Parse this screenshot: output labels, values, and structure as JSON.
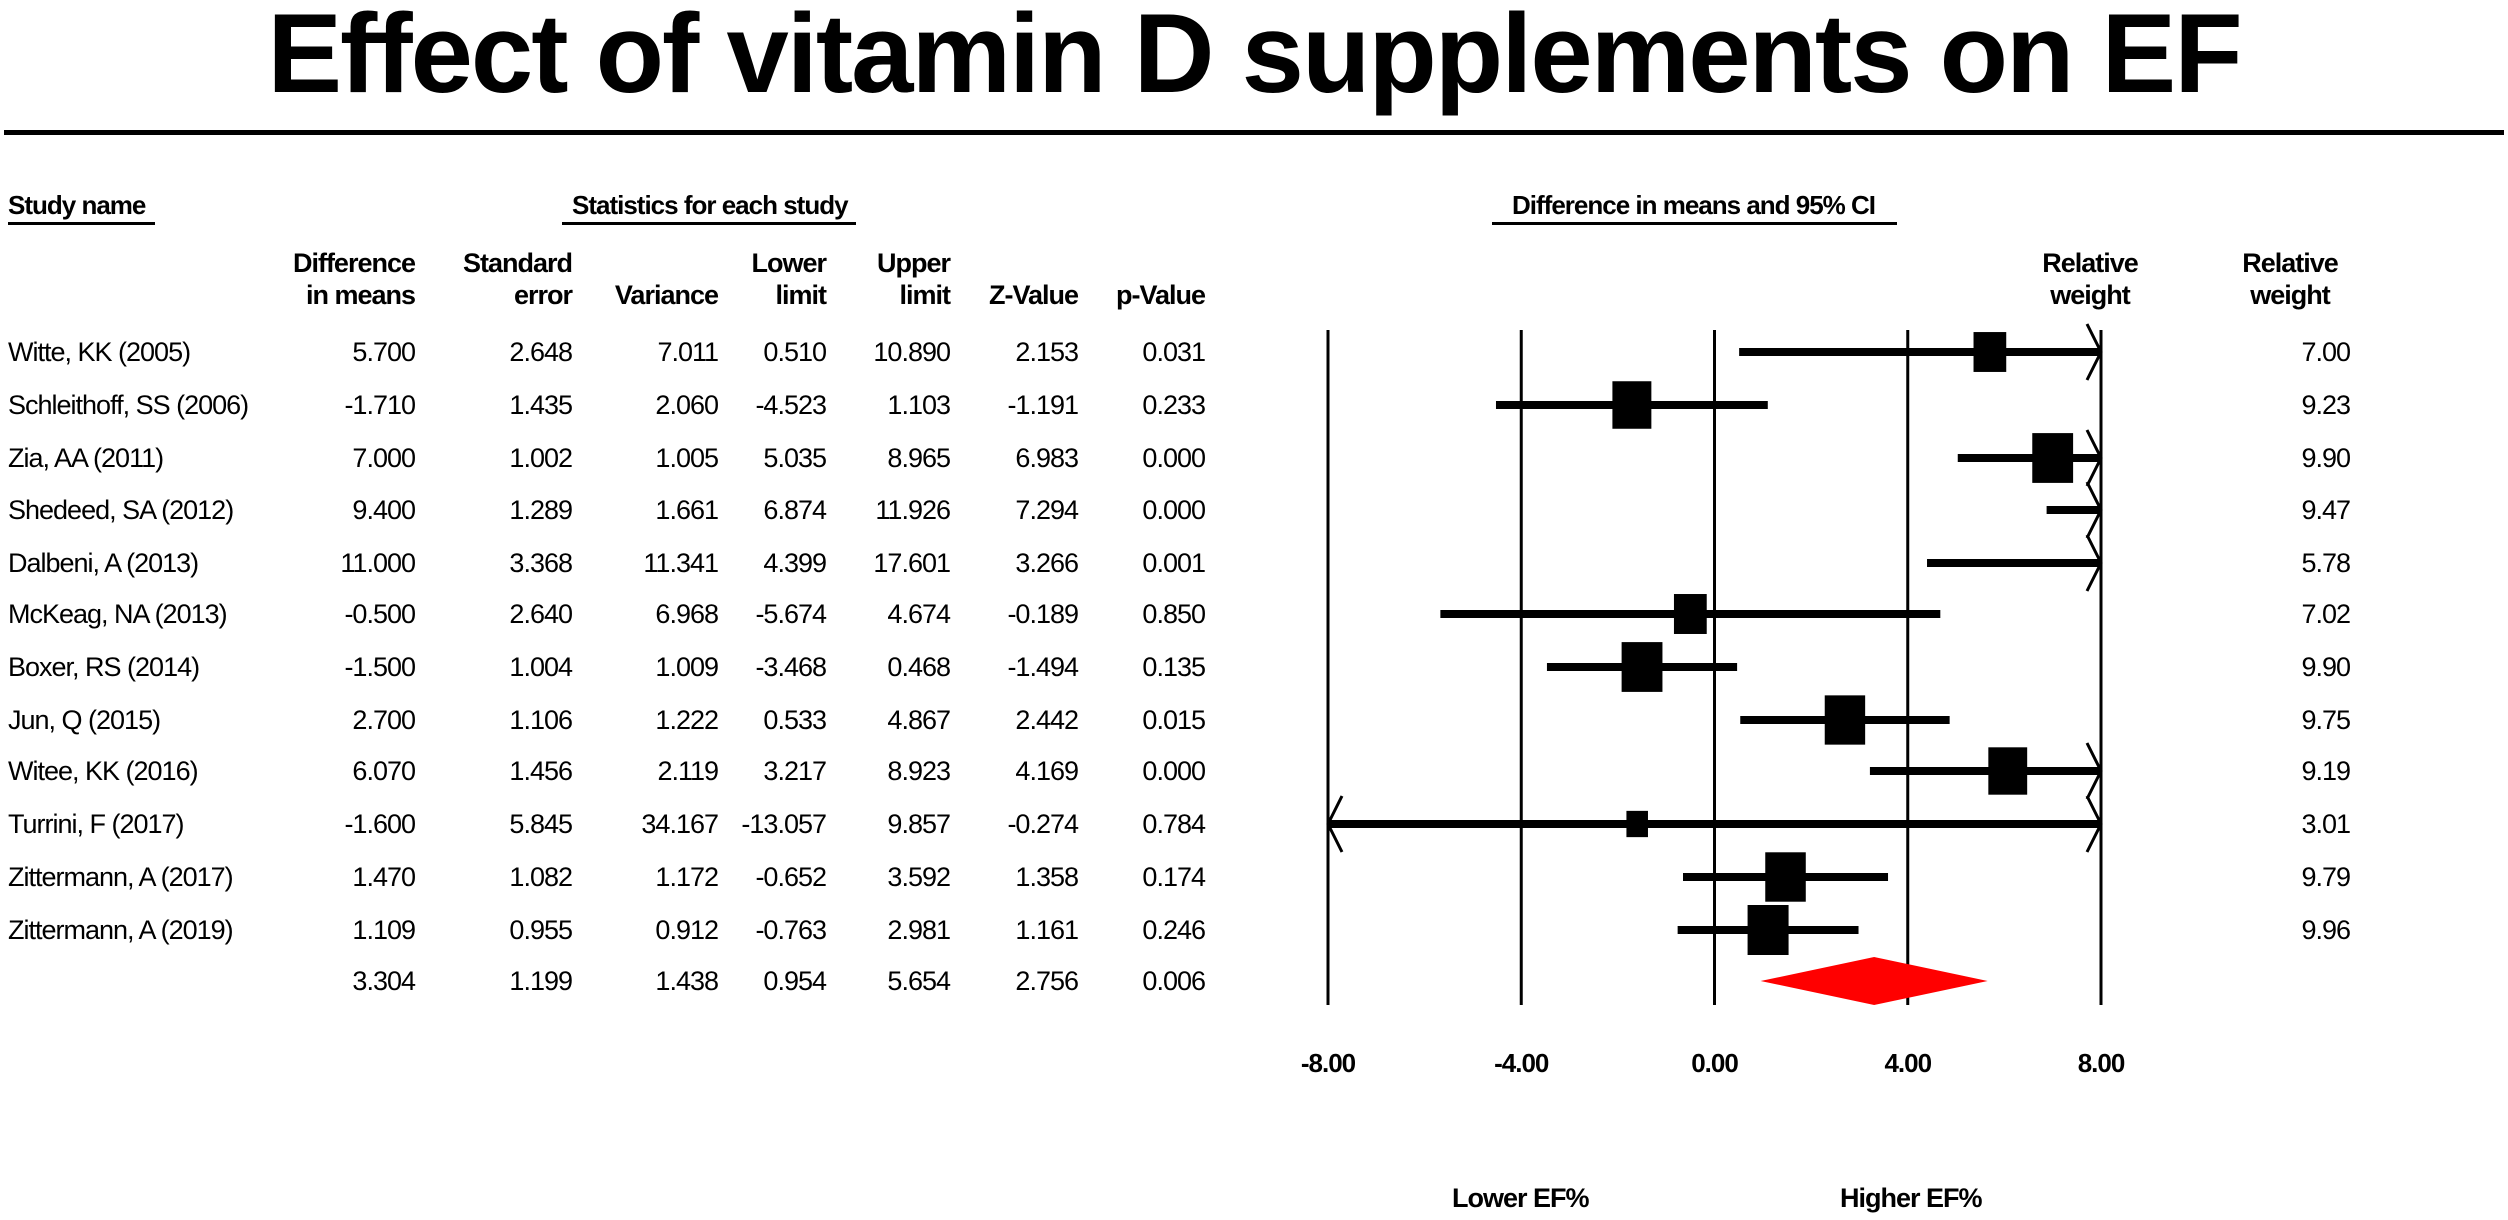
{
  "title": "Effect of vitamin D supplements on EF",
  "headers": {
    "study_name": "Study name",
    "statistics_group": "Statistics for each study",
    "plot_group": "Difference in means and 95% CI",
    "columns": [
      {
        "line1": "Difference",
        "line2": "in means"
      },
      {
        "line1": "Standard",
        "line2": "error"
      },
      {
        "line1": "",
        "line2": "Variance"
      },
      {
        "line1": "Lower",
        "line2": "limit"
      },
      {
        "line1": "Upper",
        "line2": "limit"
      },
      {
        "line1": "",
        "line2": "Z-Value"
      },
      {
        "line1": "",
        "line2": "p-Value"
      }
    ],
    "weight_columns": [
      {
        "line1": "Relative",
        "line2": "weight"
      },
      {
        "line1": "Relative",
        "line2": "weight"
      }
    ]
  },
  "rows": [
    {
      "study": "Witte, KK (2005)",
      "diff": "5.700",
      "se": "2.648",
      "var": "7.011",
      "lower": "0.510",
      "upper": "10.890",
      "z": "2.153",
      "p": "0.031",
      "weight": "7.00"
    },
    {
      "study": "Schleithoff, SS (2006)",
      "diff": "-1.710",
      "se": "1.435",
      "var": "2.060",
      "lower": "-4.523",
      "upper": "1.103",
      "z": "-1.191",
      "p": "0.233",
      "weight": "9.23"
    },
    {
      "study": "Zia, AA (2011)",
      "diff": "7.000",
      "se": "1.002",
      "var": "1.005",
      "lower": "5.035",
      "upper": "8.965",
      "z": "6.983",
      "p": "0.000",
      "weight": "9.90"
    },
    {
      "study": "Shedeed, SA (2012)",
      "diff": "9.400",
      "se": "1.289",
      "var": "1.661",
      "lower": "6.874",
      "upper": "11.926",
      "z": "7.294",
      "p": "0.000",
      "weight": "9.47"
    },
    {
      "study": "Dalbeni, A (2013)",
      "diff": "11.000",
      "se": "3.368",
      "var": "11.341",
      "lower": "4.399",
      "upper": "17.601",
      "z": "3.266",
      "p": "0.001",
      "weight": "5.78"
    },
    {
      "study": "McKeag, NA (2013)",
      "diff": "-0.500",
      "se": "2.640",
      "var": "6.968",
      "lower": "-5.674",
      "upper": "4.674",
      "z": "-0.189",
      "p": "0.850",
      "weight": "7.02"
    },
    {
      "study": "Boxer, RS (2014)",
      "diff": "-1.500",
      "se": "1.004",
      "var": "1.009",
      "lower": "-3.468",
      "upper": "0.468",
      "z": "-1.494",
      "p": "0.135",
      "weight": "9.90"
    },
    {
      "study": "Jun, Q (2015)",
      "diff": "2.700",
      "se": "1.106",
      "var": "1.222",
      "lower": "0.533",
      "upper": "4.867",
      "z": "2.442",
      "p": "0.015",
      "weight": "9.75"
    },
    {
      "study": "Witee, KK (2016)",
      "diff": "6.070",
      "se": "1.456",
      "var": "2.119",
      "lower": "3.217",
      "upper": "8.923",
      "z": "4.169",
      "p": "0.000",
      "weight": "9.19"
    },
    {
      "study": "Turrini, F (2017)",
      "diff": "-1.600",
      "se": "5.845",
      "var": "34.167",
      "lower": "-13.057",
      "upper": "9.857",
      "z": "-0.274",
      "p": "0.784",
      "weight": "3.01"
    },
    {
      "study": "Zittermann, A (2017)",
      "diff": "1.470",
      "se": "1.082",
      "var": "1.172",
      "lower": "-0.652",
      "upper": "3.592",
      "z": "1.358",
      "p": "0.174",
      "weight": "9.79"
    },
    {
      "study": "Zittermann, A (2019)",
      "diff": "1.109",
      "se": "0.955",
      "var": "0.912",
      "lower": "-0.763",
      "upper": "2.981",
      "z": "1.161",
      "p": "0.246",
      "weight": "9.96"
    }
  ],
  "summary": {
    "study": "",
    "diff": "3.304",
    "se": "1.199",
    "var": "1.438",
    "lower": "0.954",
    "upper": "5.654",
    "z": "2.756",
    "p": "0.006"
  },
  "x_ticks": [
    "-8.00",
    "-4.00",
    "0.00",
    "4.00",
    "8.00"
  ],
  "direction_labels": {
    "left": "Lower EF%",
    "right": "Higher EF%"
  },
  "colors": {
    "marker": "#000000",
    "summary_diamond": "#ff0000"
  },
  "chart_data": {
    "type": "forest",
    "title": "Effect of vitamin D supplements on EF",
    "xlabel": "Difference in means and 95% CI",
    "xlim": [
      -8,
      8
    ],
    "xticks": [
      -8,
      -4,
      0,
      4,
      8
    ],
    "grid": true,
    "direction_labels": [
      "Lower EF%",
      "Higher EF%"
    ],
    "studies": [
      {
        "name": "Witte, KK (2005)",
        "estimate": 5.7,
        "lower": 0.51,
        "upper": 10.89,
        "weight": 7.0
      },
      {
        "name": "Schleithoff, SS (2006)",
        "estimate": -1.71,
        "lower": -4.523,
        "upper": 1.103,
        "weight": 9.23
      },
      {
        "name": "Zia, AA (2011)",
        "estimate": 7.0,
        "lower": 5.035,
        "upper": 8.965,
        "weight": 9.9
      },
      {
        "name": "Shedeed, SA (2012)",
        "estimate": 9.4,
        "lower": 6.874,
        "upper": 11.926,
        "weight": 9.47
      },
      {
        "name": "Dalbeni, A (2013)",
        "estimate": 11.0,
        "lower": 4.399,
        "upper": 17.601,
        "weight": 5.78
      },
      {
        "name": "McKeag, NA (2013)",
        "estimate": -0.5,
        "lower": -5.674,
        "upper": 4.674,
        "weight": 7.02
      },
      {
        "name": "Boxer, RS (2014)",
        "estimate": -1.5,
        "lower": -3.468,
        "upper": 0.468,
        "weight": 9.9
      },
      {
        "name": "Jun, Q (2015)",
        "estimate": 2.7,
        "lower": 0.533,
        "upper": 4.867,
        "weight": 9.75
      },
      {
        "name": "Witee, KK (2016)",
        "estimate": 6.07,
        "lower": 3.217,
        "upper": 8.923,
        "weight": 9.19
      },
      {
        "name": "Turrini, F (2017)",
        "estimate": -1.6,
        "lower": -13.057,
        "upper": 9.857,
        "weight": 3.01
      },
      {
        "name": "Zittermann, A (2017)",
        "estimate": 1.47,
        "lower": -0.652,
        "upper": 3.592,
        "weight": 9.79
      },
      {
        "name": "Zittermann, A (2019)",
        "estimate": 1.109,
        "lower": -0.763,
        "upper": 2.981,
        "weight": 9.96
      }
    ],
    "summary": {
      "estimate": 3.304,
      "lower": 0.954,
      "upper": 5.654
    }
  }
}
